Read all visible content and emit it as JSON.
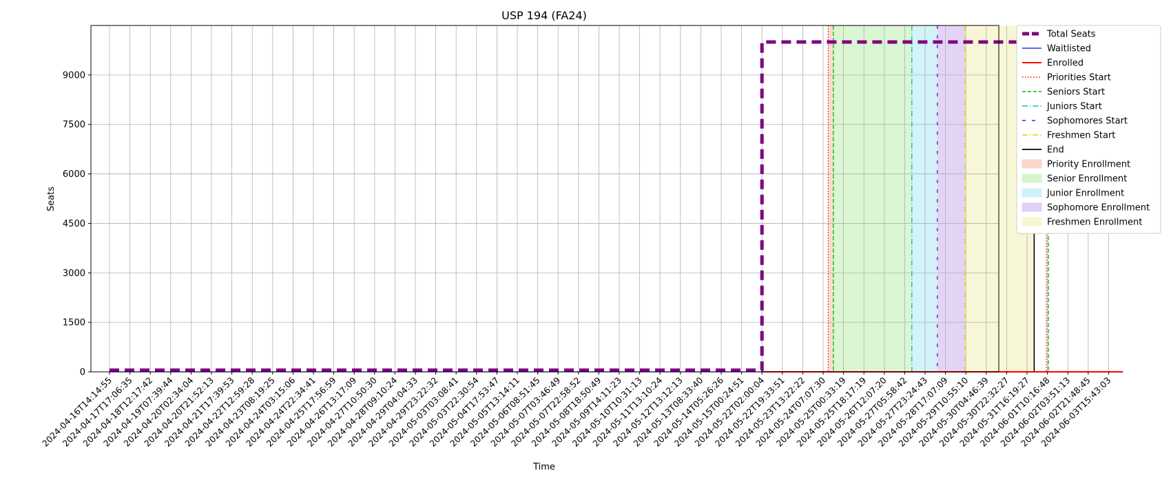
{
  "chart_data": {
    "type": "line",
    "title": "USP 194 (FA24)",
    "xlabel": "Time",
    "ylabel": "Seats",
    "ylim": [
      0,
      10500
    ],
    "y_ticks": [
      0,
      1500,
      3000,
      4500,
      6000,
      7500,
      9000
    ],
    "grid": true,
    "legend_position": "outside right",
    "x_categories": [
      "2024-04-16T14:14:55",
      "2024-04-17T17:06:35",
      "2024-04-18T12:17:42",
      "2024-04-19T07:39:44",
      "2024-04-20T02:34:04",
      "2024-04-20T21:52:13",
      "2024-04-21T17:39:53",
      "2024-04-22T12:59:28",
      "2024-04-23T08:19:25",
      "2024-04-24T03:15:06",
      "2024-04-24T22:34:41",
      "2024-04-25T17:56:59",
      "2024-04-26T13:17:09",
      "2024-04-27T10:50:30",
      "2024-04-28T09:10:24",
      "2024-04-29T04:04:33",
      "2024-04-29T23:22:32",
      "2024-05-03T03:08:41",
      "2024-05-03T22:30:54",
      "2024-05-04T17:53:47",
      "2024-05-05T13:14:11",
      "2024-05-06T08:51:45",
      "2024-05-07T03:46:49",
      "2024-05-07T22:58:52",
      "2024-05-08T18:50:49",
      "2024-05-09T14:11:23",
      "2024-05-10T10:31:13",
      "2024-05-11T13:10:24",
      "2024-05-12T13:12:13",
      "2024-05-13T08:33:40",
      "2024-05-14T05:26:26",
      "2024-05-15T00:24:51",
      "2024-05-22T02:00:04",
      "2024-05-22T19:33:51",
      "2024-05-23T13:22:22",
      "2024-05-24T07:07:30",
      "2024-05-25T00:33:19",
      "2024-05-25T18:17:19",
      "2024-05-26T12:07:20",
      "2024-05-27T05:58:42",
      "2024-05-27T23:24:43",
      "2024-05-28T17:07:09",
      "2024-05-29T10:55:10",
      "2024-05-30T04:46:39",
      "2024-05-30T22:32:27",
      "2024-05-31T16:19:27",
      "2024-06-01T10:16:48",
      "2024-06-02T03:51:13",
      "2024-06-02T21:48:45",
      "2024-06-03T15:43:03"
    ],
    "series": [
      {
        "name": "Total Seats",
        "color": "#800080",
        "style": "dashed",
        "points": [
          [
            0,
            50
          ],
          [
            32,
            50
          ],
          [
            32,
            10000
          ],
          [
            49.7,
            10000
          ]
        ]
      },
      {
        "name": "Waitlisted",
        "color": "#0000ff",
        "style": "solid",
        "points": [
          [
            0,
            0
          ],
          [
            49.7,
            0
          ]
        ]
      },
      {
        "name": "Enrolled",
        "color": "#ff0000",
        "style": "solid",
        "points": [
          [
            32.1,
            0
          ],
          [
            49.7,
            0
          ]
        ]
      }
    ],
    "vertical_lines": [
      {
        "name": "Priorities Start",
        "color": "#ff0000",
        "style": "dotted",
        "at": 35.25
      },
      {
        "name": "Seniors Start",
        "color": "#00bb00",
        "style": "dashed",
        "at": 35.5
      },
      {
        "name": "Juniors Start",
        "color": "#00bfbf",
        "style": "dashdot",
        "at": 39.35
      },
      {
        "name": "Sophomores Start",
        "color": "#6a0dd6",
        "style": "loosedash",
        "at": 40.6
      },
      {
        "name": "Freshmen Start",
        "color": "#e0d000",
        "style": "dashdot",
        "at": 41.95
      },
      {
        "name": "End",
        "color": "#000000",
        "style": "solid",
        "at": 45.35
      },
      {
        "name": "",
        "color": "#ff0000",
        "style": "dotted",
        "at": 45.95
      },
      {
        "name": "",
        "color": "#00bb00",
        "style": "dashed",
        "at": 46.05
      }
    ],
    "spans": [
      {
        "name": "Priority Enrollment",
        "color": "#f4b8a0",
        "from": 35.25,
        "to": 35.5
      },
      {
        "name": "Senior Enrollment",
        "color": "#b6eda6",
        "from": 35.5,
        "to": 39.35
      },
      {
        "name": "Junior Enrollment",
        "color": "#a6e8f0",
        "from": 39.35,
        "to": 40.6
      },
      {
        "name": "Sophomore Enrollment",
        "color": "#c7a9ee",
        "from": 40.6,
        "to": 41.95
      },
      {
        "name": "Freshmen Enrollment",
        "color": "#f0f0b0",
        "from": 41.95,
        "to": 45.35
      }
    ]
  }
}
